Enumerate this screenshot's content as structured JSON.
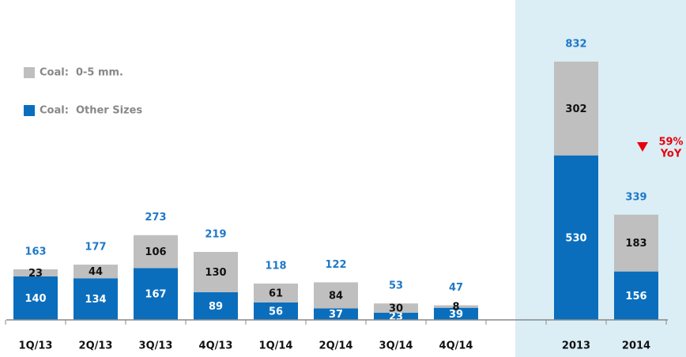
{
  "chart_data": {
    "type": "stacked_bar",
    "categories": [
      "1Q/13",
      "2Q/13",
      "3Q/13",
      "4Q/13",
      "1Q/14",
      "2Q/14",
      "3Q/14",
      "4Q/14",
      null,
      "2013",
      "2014"
    ],
    "series": [
      {
        "name": "Coal:  Other Sizes",
        "color": "#0a6ebd",
        "values": [
          140,
          134,
          167,
          89,
          56,
          37,
          23,
          39,
          null,
          530,
          156
        ]
      },
      {
        "name": "Coal:  0-5 mm.",
        "color": "#bfbfbf",
        "values": [
          23,
          44,
          106,
          130,
          61,
          84,
          30,
          8,
          null,
          302,
          183
        ]
      }
    ],
    "totals": [
      163,
      177,
      273,
      219,
      118,
      122,
      53,
      47,
      null,
      832,
      339
    ],
    "annotations": [
      "59%",
      "YoY"
    ],
    "annotation_color": "#e8000b",
    "highlight_color": "#dbeef5"
  }
}
